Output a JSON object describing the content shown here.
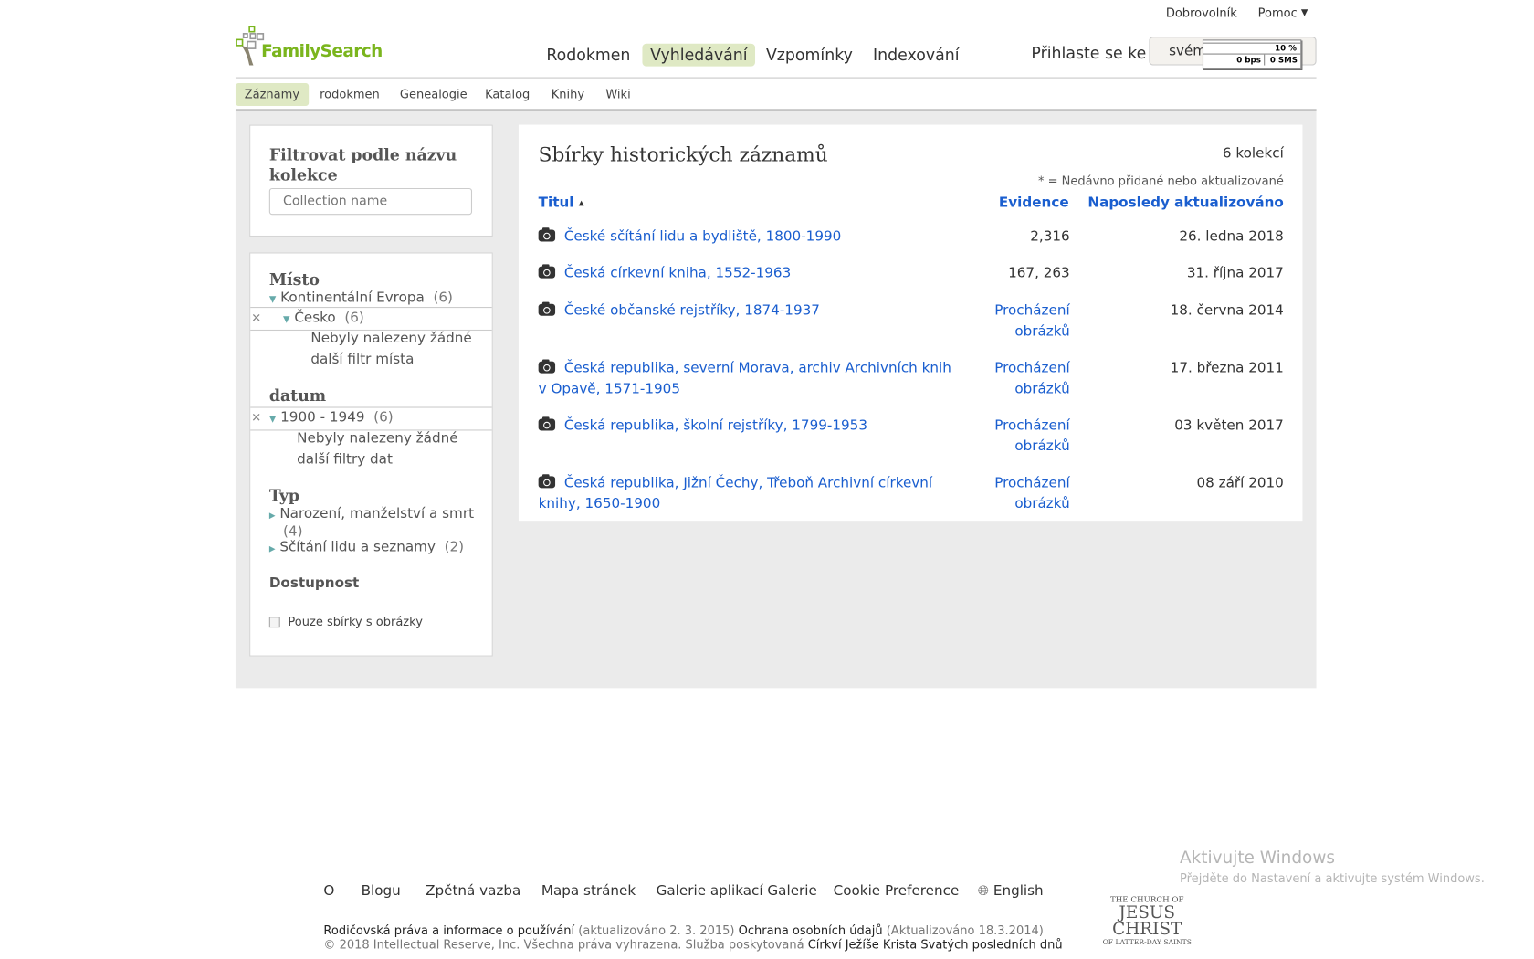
{
  "top_links": {
    "volunteer": "Dobrovolník",
    "help": "Pomoc",
    "help_caret": "▼"
  },
  "logo": {
    "text": "FamilySearch",
    "color": "#7ab51d"
  },
  "main_nav": [
    {
      "label": "Rodokmen",
      "active": false
    },
    {
      "label": "Vyhledávání",
      "active": true
    },
    {
      "label": "Vzpomínky",
      "active": false
    },
    {
      "label": "Indexování",
      "active": false
    }
  ],
  "signin": {
    "prompt": "Přihlaste se ke",
    "button_text": "svém"
  },
  "net_widget": {
    "percent": "10 %",
    "bps": "0 bps",
    "sms": "0 SMS"
  },
  "sub_nav": [
    {
      "label": "Záznamy",
      "active": true
    },
    {
      "label": "rodokmen"
    },
    {
      "label": "Genealogie"
    },
    {
      "label": "Katalog"
    },
    {
      "label": "Knihy"
    },
    {
      "label": "Wiki"
    }
  ],
  "filter": {
    "title": "Filtrovat podle názvu kolekce",
    "placeholder": "Collection name"
  },
  "facets": {
    "place": {
      "title": "Místo",
      "level1": "Kontinentální Evropa",
      "level1_count": "(6)",
      "level2": "Česko",
      "level2_count": "(6)",
      "none": "Nebyly nalezeny žádné další filtr místa"
    },
    "date": {
      "title": "datum",
      "range": "1900 - 1949",
      "range_count": "(6)",
      "none": "Nebyly nalezeny žádné další filtry dat"
    },
    "type": {
      "title": "Typ",
      "items": [
        {
          "label": "Narození, manželství a smrt",
          "count": "(4)"
        },
        {
          "label": "Sčítání lidu a seznamy",
          "count": "(2)"
        }
      ]
    },
    "availability": {
      "title": "Dostupnost",
      "checkbox_label": "Pouze sbírky s obrázky",
      "checked": false
    }
  },
  "main": {
    "title": "Sbírky historických záznamů",
    "count": "6 kolekcí",
    "note": "* = Nedávno přidané nebo aktualizované",
    "columns": {
      "title": "Titul",
      "sort_icon": "▲",
      "records": "Evidence",
      "updated": "Naposledy aktualizováno"
    },
    "rows": [
      {
        "title": "České sčítání lidu a bydliště, 1800-1990",
        "records": "2,316",
        "updated": "26. ledna 2018"
      },
      {
        "title": "Česká církevní kniha, 1552-1963",
        "records": "167, 263",
        "updated": "31. října 2017"
      },
      {
        "title": "České občanské rejstříky, 1874-1937",
        "records": "Procházení obrázků",
        "updated": "18. června 2014"
      },
      {
        "title": "Česká republika, severní Morava, archiv Archivních knih v Opavě, 1571-1905",
        "records": "Procházení obrázků",
        "updated": "17. března 2011"
      },
      {
        "title": "Česká republika, školní rejstříky, 1799-1953",
        "records": "Procházení obrázků",
        "updated": "03 květen 2017"
      },
      {
        "title": "Česká republika, Jižní Čechy, Třeboň Archivní církevní knihy, 1650-1900",
        "records": "Procházení obrázků",
        "updated": "08 září 2010"
      }
    ]
  },
  "footer": {
    "links": [
      "O",
      "Blogu",
      "Zpětná vazba",
      "Mapa stránek",
      "Galerie aplikací Galerie",
      "Cookie Preference"
    ],
    "language": "English",
    "legal1_a": "Rodičovská práva a informace o používání",
    "legal1_b": "(aktualizováno 2. 3. 2015)",
    "legal1_c": "Ochrana osobních údajů",
    "legal1_d": "(Aktualizováno 18.3.2014)",
    "legal2_a": "© 2018 Intellectual Reserve, Inc. Všechna práva vyhrazena. Služba poskytovaná",
    "legal2_b": "Církví Ježíše Krista Svatých posledních dnů",
    "church_logo": {
      "line1": "THE CHURCH OF",
      "line2": "JESUS CHRIST",
      "line3": "OF LATTER-DAY SAINTS"
    }
  },
  "watermark": {
    "title": "Aktivujte Windows",
    "subtitle": "Přejděte do Nastavení a aktivujte systém Windows."
  }
}
